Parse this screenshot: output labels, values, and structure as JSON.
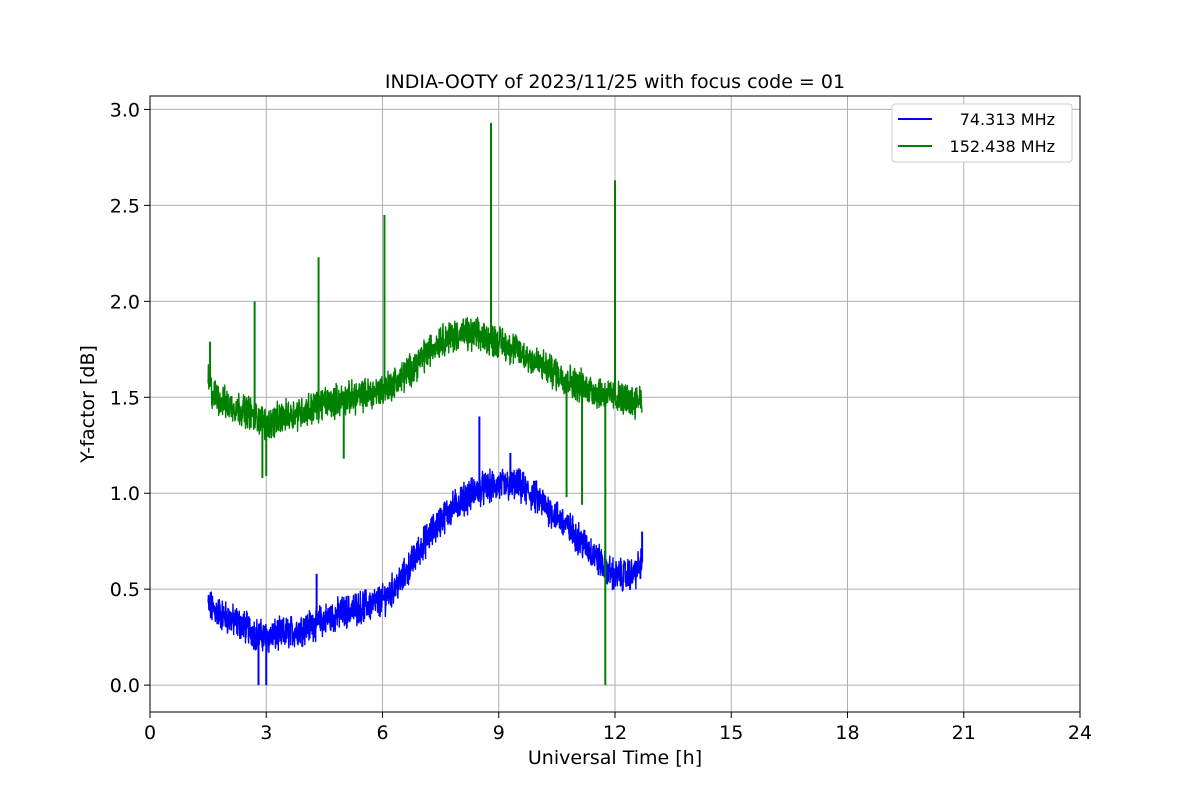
{
  "chart_data": {
    "type": "line",
    "title": "INDIA-OOTY of 2023/11/25 with focus code = 01",
    "xlabel": "Universal Time [h]",
    "ylabel": "Y-factor [dB]",
    "xlim": [
      0,
      24
    ],
    "ylim": [
      -0.14,
      3.07
    ],
    "x_ticks": [
      "0",
      "3",
      "6",
      "9",
      "12",
      "15",
      "18",
      "21",
      "24"
    ],
    "y_ticks": [
      "0.0",
      "0.5",
      "1.0",
      "1.5",
      "2.0",
      "2.5",
      "3.0"
    ],
    "grid": true,
    "legend_position": "top-right",
    "series": [
      {
        "name": "74.313 MHz",
        "color": "#0000ff",
        "x": [
          1.5,
          1.6,
          2.0,
          2.5,
          2.8,
          3.0,
          3.5,
          4.0,
          4.5,
          5.0,
          5.5,
          6.0,
          6.5,
          7.0,
          7.5,
          8.0,
          8.5,
          9.0,
          9.5,
          10.0,
          10.5,
          11.0,
          11.5,
          11.8,
          12.0,
          12.5,
          12.7
        ],
        "y": [
          0.42,
          0.4,
          0.35,
          0.3,
          0.26,
          0.25,
          0.27,
          0.3,
          0.34,
          0.38,
          0.41,
          0.44,
          0.55,
          0.72,
          0.86,
          0.96,
          1.02,
          1.04,
          1.04,
          0.97,
          0.88,
          0.78,
          0.67,
          0.6,
          0.57,
          0.58,
          0.64
        ],
        "spikes": [
          {
            "x": 2.8,
            "y": 0.0
          },
          {
            "x": 3.0,
            "y": 0.0
          },
          {
            "x": 4.3,
            "y": 0.58
          },
          {
            "x": 8.5,
            "y": 1.4
          },
          {
            "x": 9.3,
            "y": 1.21
          },
          {
            "x": 12.7,
            "y": 0.8
          }
        ]
      },
      {
        "name": "152.438 MHz",
        "color": "#008000",
        "x": [
          1.5,
          1.6,
          2.0,
          2.5,
          3.0,
          3.5,
          4.0,
          4.5,
          5.0,
          5.5,
          6.0,
          6.5,
          7.0,
          7.5,
          8.0,
          8.5,
          9.0,
          9.5,
          10.0,
          10.5,
          11.0,
          11.5,
          12.0,
          12.5,
          12.7
        ],
        "y": [
          1.6,
          1.52,
          1.46,
          1.43,
          1.36,
          1.4,
          1.43,
          1.47,
          1.49,
          1.51,
          1.54,
          1.6,
          1.7,
          1.8,
          1.83,
          1.82,
          1.79,
          1.74,
          1.68,
          1.62,
          1.57,
          1.53,
          1.5,
          1.48,
          1.5
        ],
        "spikes": [
          {
            "x": 1.55,
            "y": 1.79
          },
          {
            "x": 2.7,
            "y": 2.0
          },
          {
            "x": 2.9,
            "y": 1.08
          },
          {
            "x": 3.0,
            "y": 1.09
          },
          {
            "x": 4.35,
            "y": 2.23
          },
          {
            "x": 5.0,
            "y": 1.18
          },
          {
            "x": 6.05,
            "y": 2.45
          },
          {
            "x": 8.8,
            "y": 2.93
          },
          {
            "x": 10.75,
            "y": 0.98
          },
          {
            "x": 11.15,
            "y": 0.94
          },
          {
            "x": 11.75,
            "y": 0.0
          },
          {
            "x": 12.0,
            "y": 2.63
          }
        ]
      }
    ]
  }
}
